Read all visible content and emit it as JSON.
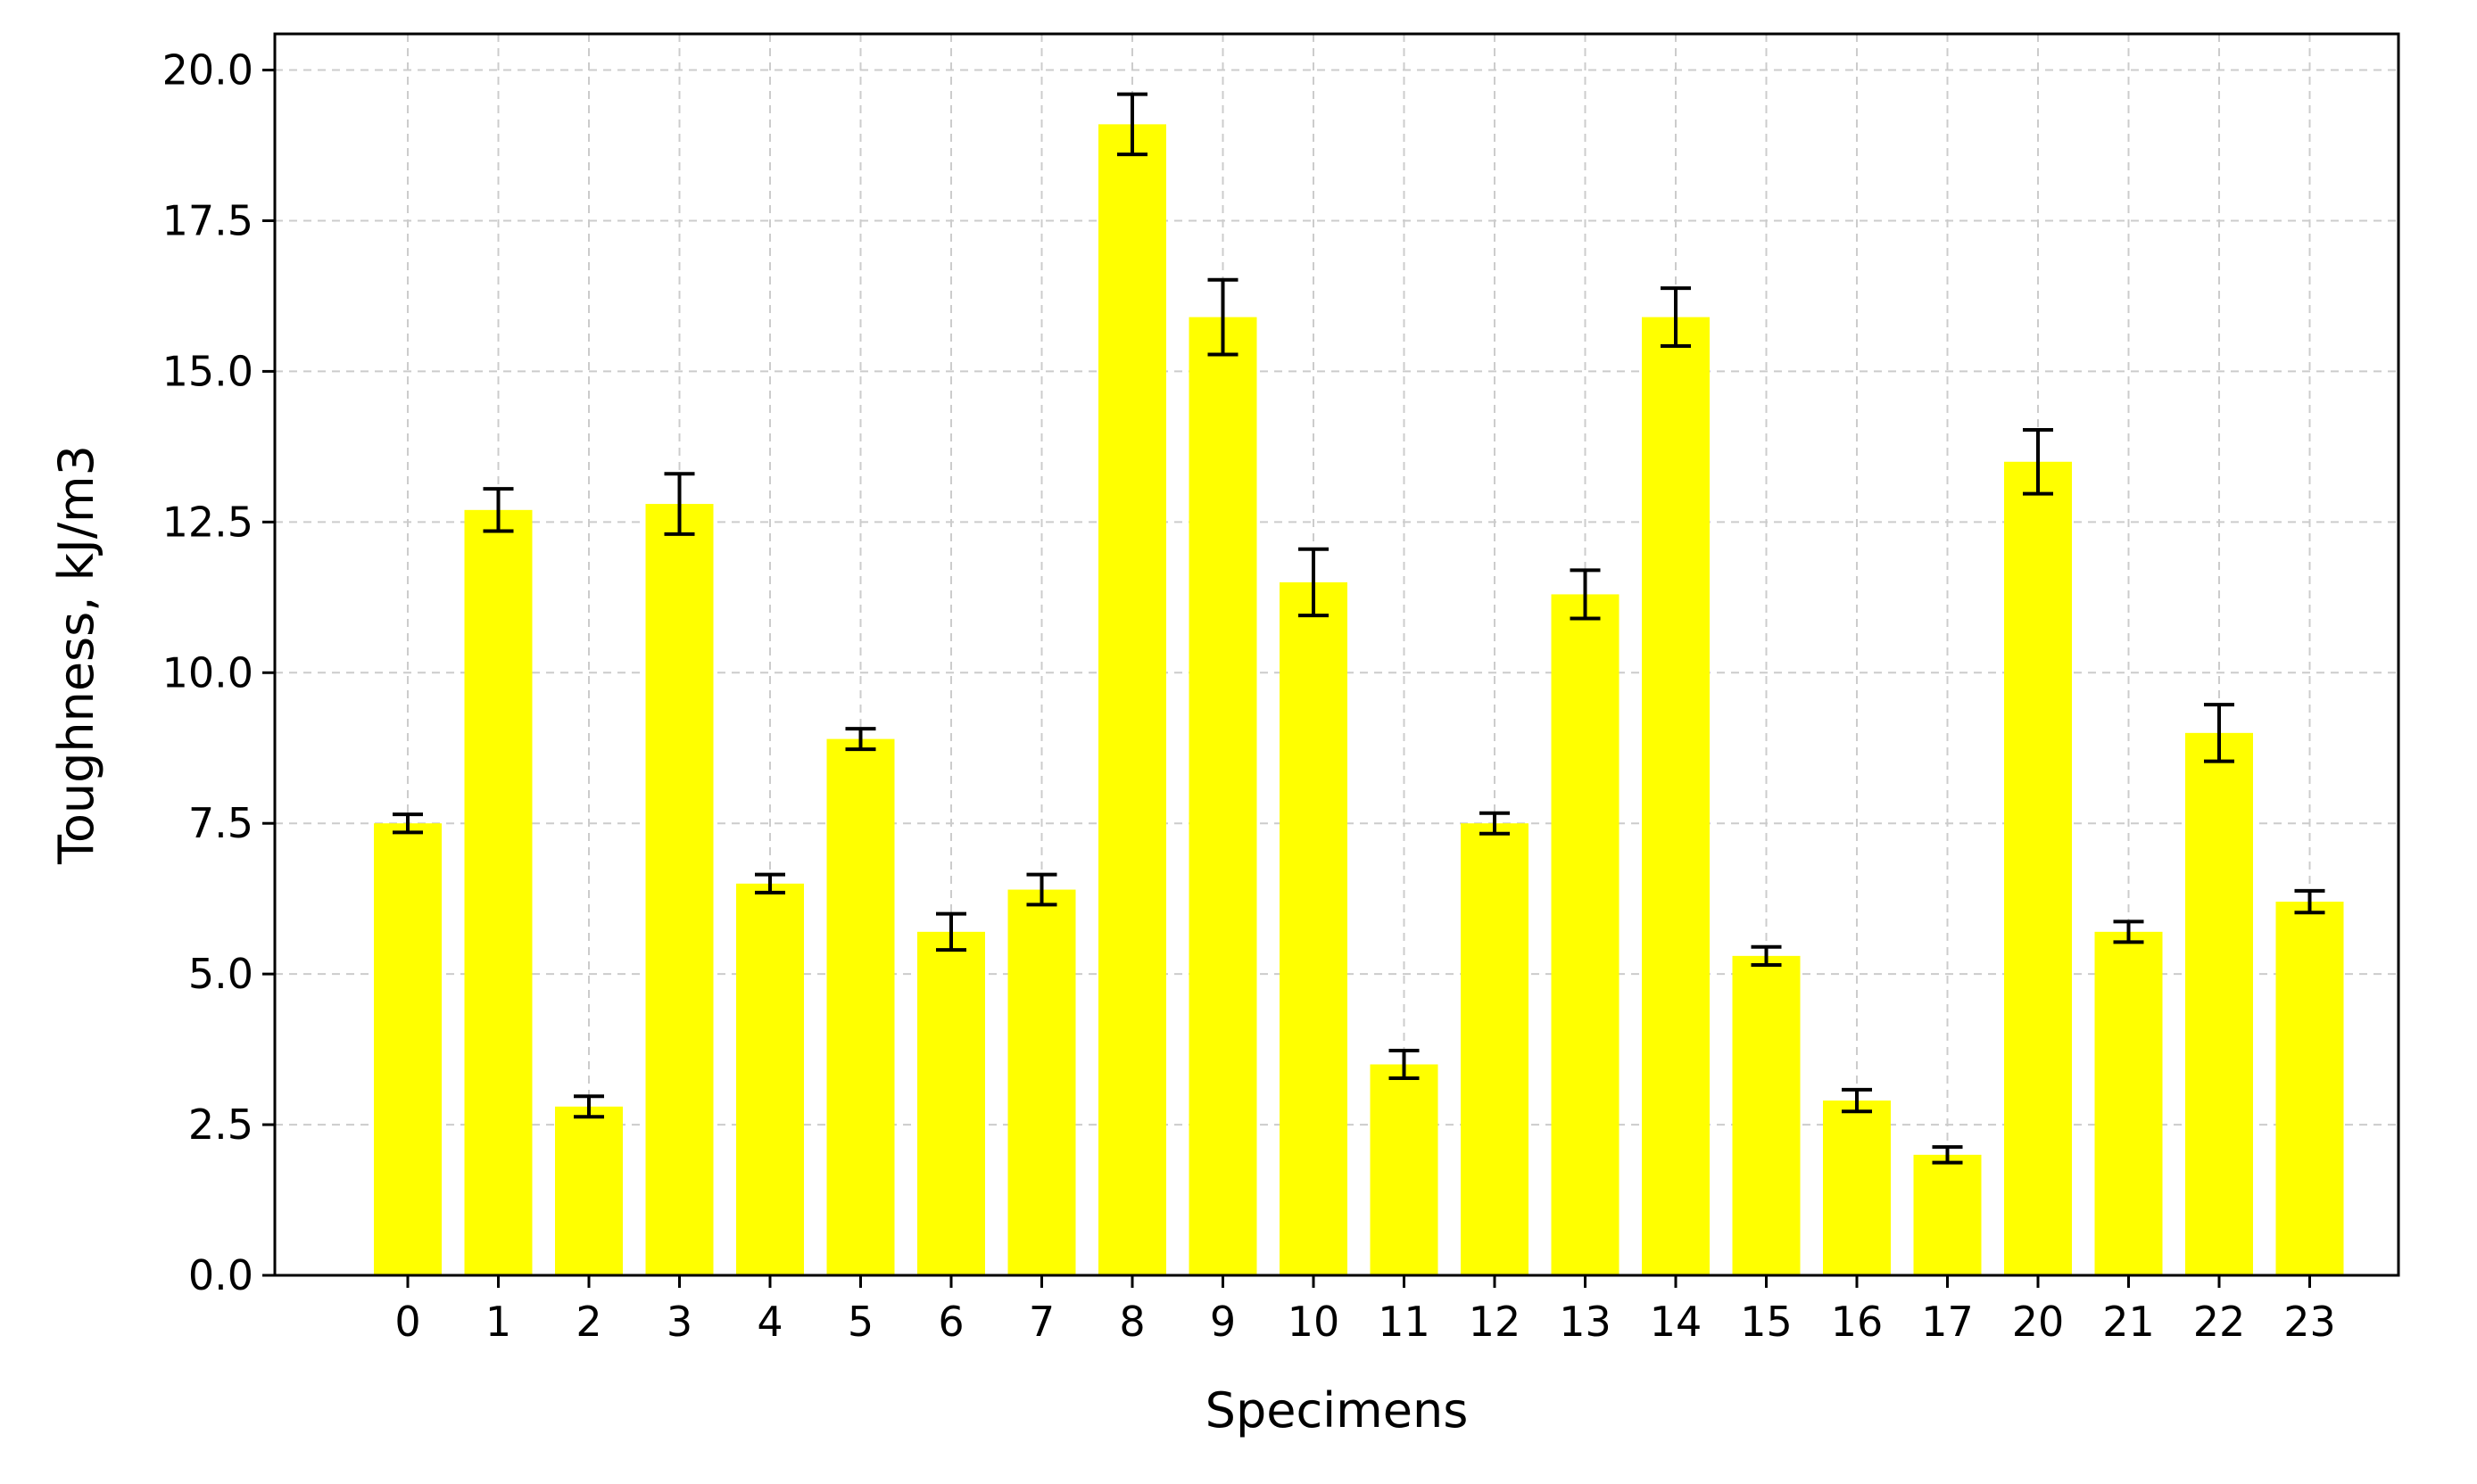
{
  "chart_data": {
    "type": "bar",
    "title": "",
    "xlabel": "Specimens",
    "ylabel": "Toughness, kJ/m3",
    "categories": [
      "0",
      "1",
      "2",
      "3",
      "4",
      "5",
      "6",
      "7",
      "8",
      "9",
      "10",
      "11",
      "12",
      "13",
      "14",
      "15",
      "16",
      "17",
      "20",
      "21",
      "22",
      "23"
    ],
    "values": [
      7.5,
      12.7,
      2.8,
      12.8,
      6.5,
      8.9,
      5.7,
      6.4,
      19.1,
      15.9,
      11.5,
      3.5,
      7.5,
      11.3,
      15.9,
      5.3,
      2.9,
      2.0,
      13.5,
      5.7,
      9.0,
      6.2
    ],
    "errors": [
      0.15,
      0.35,
      0.17,
      0.5,
      0.15,
      0.17,
      0.3,
      0.25,
      0.5,
      0.62,
      0.55,
      0.23,
      0.17,
      0.4,
      0.48,
      0.15,
      0.18,
      0.13,
      0.53,
      0.17,
      0.47,
      0.18
    ],
    "ylim": [
      0,
      20.6
    ],
    "yticks": [
      "0.0",
      "2.5",
      "5.0",
      "7.5",
      "10.0",
      "12.5",
      "15.0",
      "17.5",
      "20.0"
    ],
    "ytick_values": [
      0,
      2.5,
      5,
      7.5,
      10,
      12.5,
      15,
      17.5,
      20
    ],
    "grid": true,
    "colors": {
      "bar": "#ffff00",
      "error": "#000000",
      "grid": "#cccccc",
      "axis": "#000000"
    }
  }
}
